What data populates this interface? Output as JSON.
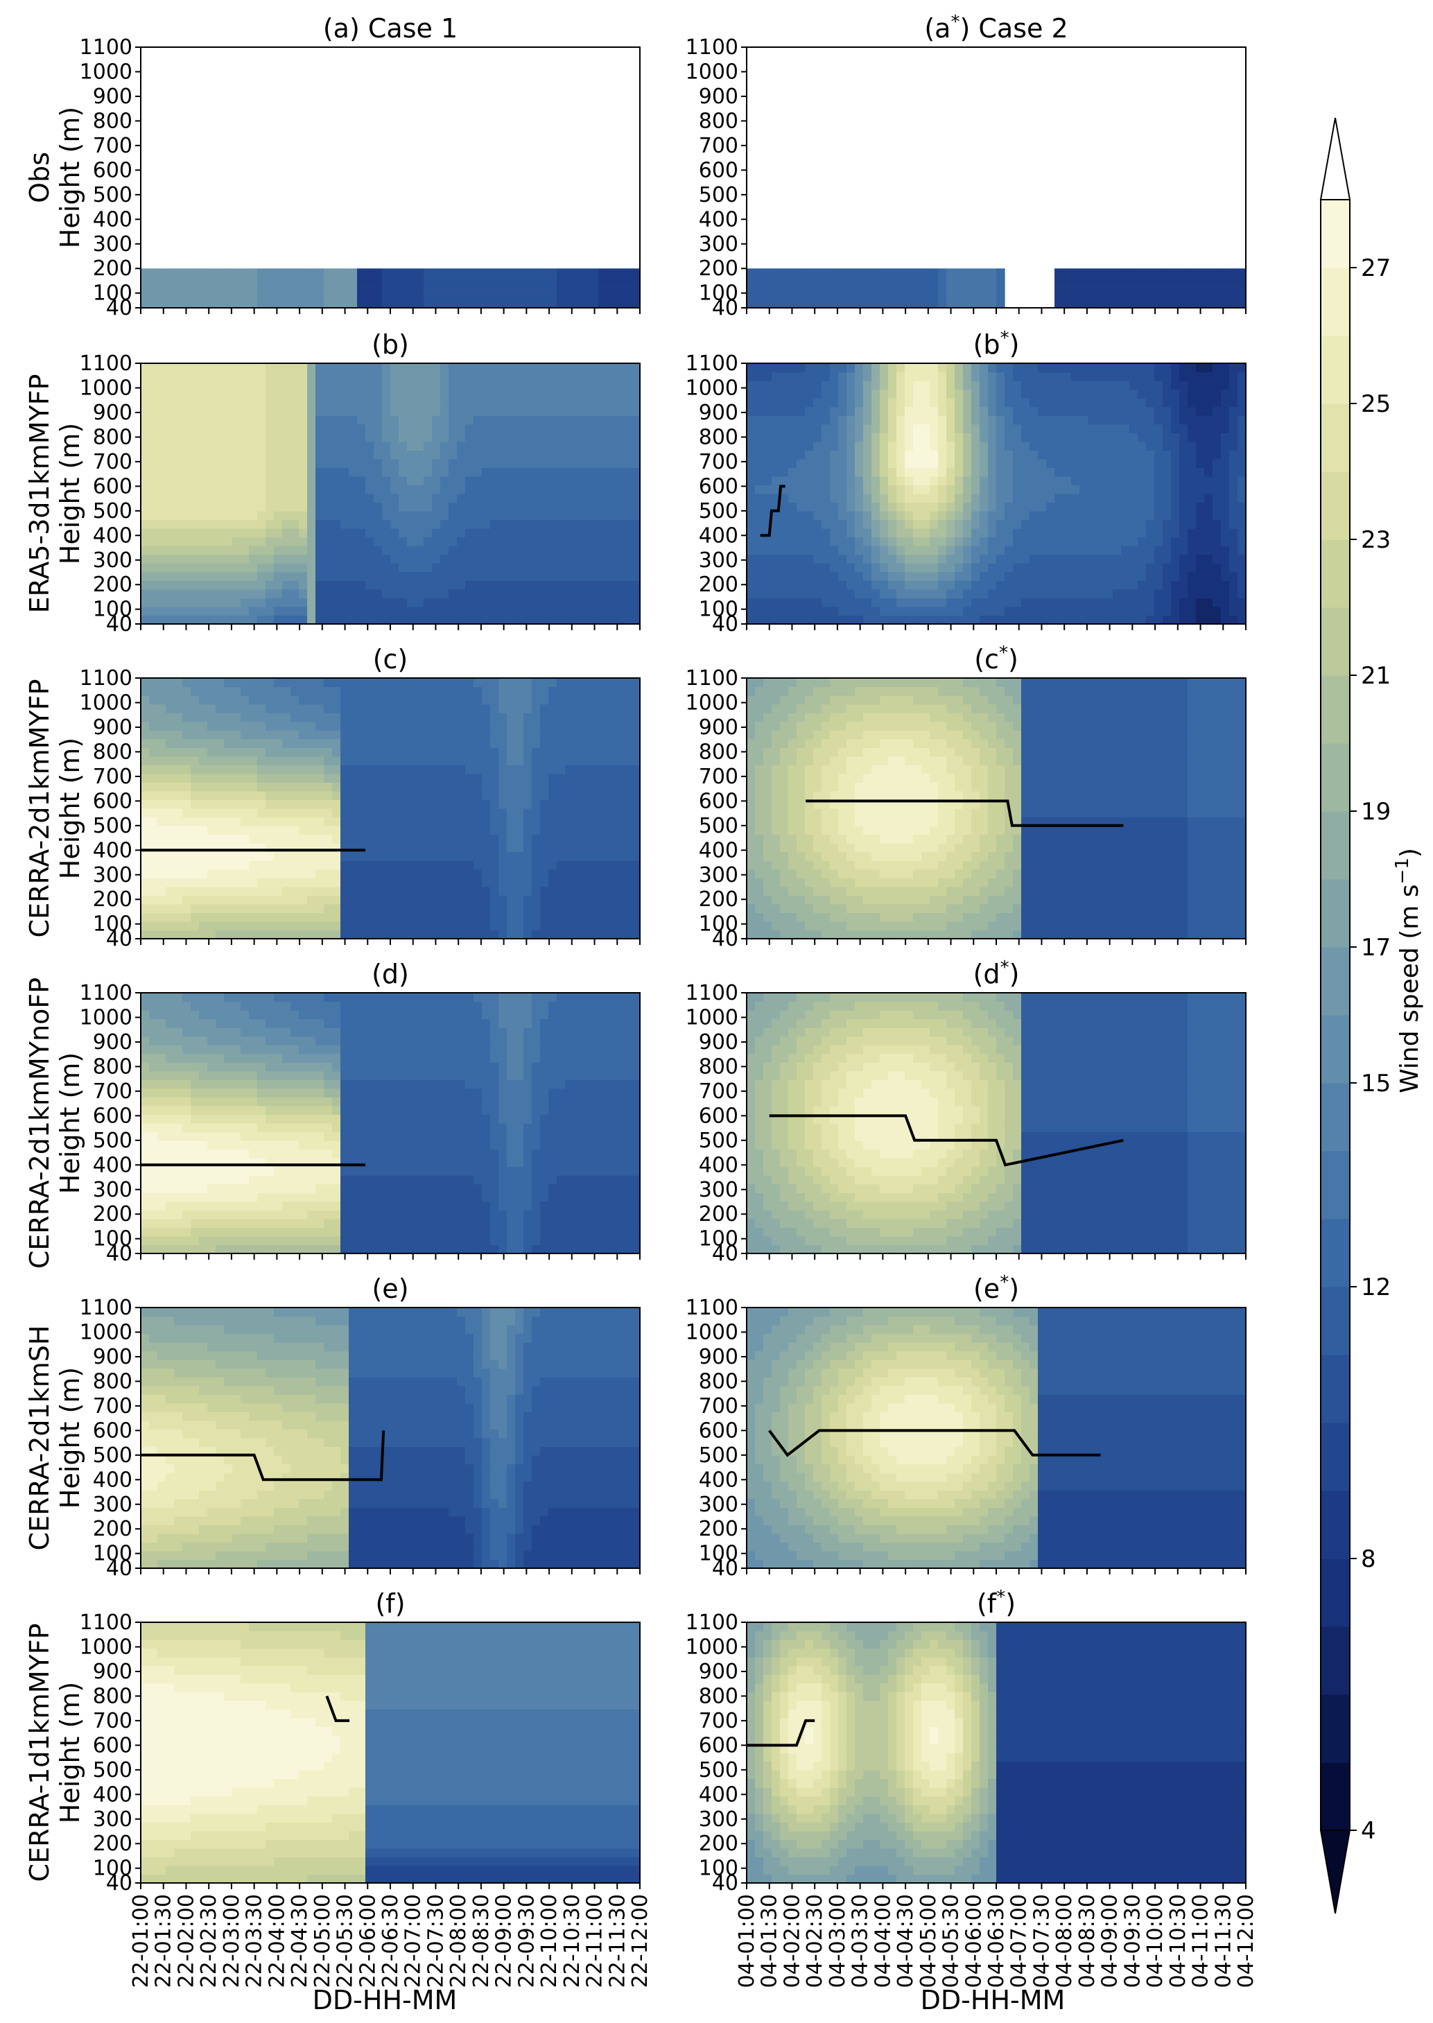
{
  "chart_data": {
    "type": "heatmap",
    "description_units": "Wind speed (m s^-1)",
    "x_label": "DD-HH-MM",
    "y_ticks": [
      40,
      100,
      200,
      300,
      400,
      500,
      600,
      700,
      800,
      900,
      1000,
      1100
    ],
    "ylim": [
      40,
      1100
    ],
    "colorbar": {
      "label": "Wind speed (m s$^{-1}$)",
      "label_plain": "Wind speed (m s",
      "label_sup": "−1",
      "label_close": ")",
      "ticks": [
        4,
        8,
        12,
        15,
        17,
        19,
        21,
        23,
        25,
        27
      ],
      "levels": [
        4,
        5,
        6,
        7,
        8,
        9,
        10,
        11,
        12,
        13,
        14,
        15,
        16,
        17,
        18,
        19,
        20,
        21,
        22,
        23,
        24,
        25,
        26,
        27,
        28
      ],
      "extend": "both",
      "colors": [
        "#070d3a",
        "#0c1a52",
        "#122668",
        "#17327a",
        "#1d3b85",
        "#23478f",
        "#295297",
        "#305e9f",
        "#3a6aa5",
        "#4776a8",
        "#5482aa",
        "#628dab",
        "#7198aa",
        "#80a3a8",
        "#8fada5",
        "#9eb7a1",
        "#adc09d",
        "#bcc99b",
        "#cad29c",
        "#d7dba2",
        "#e2e3ac",
        "#ebebba",
        "#f2f1c9",
        "#f8f7dc"
      ]
    },
    "column_titles": [
      "(a) Case 1",
      "(a*) Case 2"
    ],
    "x_ticks_case1": [
      "22-01:00",
      "22-01:30",
      "22-02:00",
      "22-02:30",
      "22-03:00",
      "22-03:30",
      "22-04:00",
      "22-04:30",
      "22-05:00",
      "22-05:30",
      "22-06:00",
      "22-06:30",
      "22-07:00",
      "22-07:30",
      "22-08:00",
      "22-08:30",
      "22-09:00",
      "22-09:30",
      "22-10:00",
      "22-10:30",
      "22-11:00",
      "22-11:30",
      "22-12:00"
    ],
    "x_ticks_case2": [
      "04-01:00",
      "04-01:30",
      "04-02:00",
      "04-02:30",
      "04-03:00",
      "04-03:30",
      "04-04:00",
      "04-04:30",
      "04-05:00",
      "04-05:30",
      "04-06:00",
      "04-06:30",
      "04-07:00",
      "04-07:30",
      "04-08:00",
      "04-08:30",
      "04-09:00",
      "04-09:30",
      "04-10:00",
      "04-10:30",
      "04-11:00",
      "04-11:30",
      "04-12:00"
    ],
    "rows": [
      {
        "ylabel_top": "Obs",
        "ylabel_bottom": "Height (m)",
        "case1_title": "(a) Case 1",
        "case2_title": "(a*) Case 2"
      },
      {
        "ylabel_top": "ERA5-3d1kmMYFP",
        "ylabel_bottom": "Height (m)",
        "case1_title": "(b)",
        "case2_title": "(b*)",
        "jet_case2": [
          [
            1.3,
            400
          ],
          [
            1.5,
            400
          ],
          [
            1.55,
            500
          ],
          [
            1.7,
            500
          ],
          [
            1.75,
            600
          ],
          [
            1.85,
            600
          ]
        ]
      },
      {
        "ylabel_top": "CERRA-2d1kmMYFP",
        "ylabel_bottom": "Height (m)",
        "case1_title": "(c)",
        "case2_title": "(c*)",
        "jet_case1": [
          [
            1.0,
            400
          ],
          [
            5.95,
            400
          ]
        ],
        "jet_case2": [
          [
            2.3,
            600
          ],
          [
            6.75,
            600
          ],
          [
            6.85,
            500
          ],
          [
            9.3,
            500
          ]
        ]
      },
      {
        "ylabel_top": "CERRA-2d1kmMYnoFP",
        "ylabel_bottom": "Height (m)",
        "case1_title": "(d)",
        "case2_title": "(d*)",
        "jet_case1": [
          [
            1.0,
            400
          ],
          [
            5.95,
            400
          ]
        ],
        "jet_case2": [
          [
            1.5,
            600
          ],
          [
            4.5,
            600
          ],
          [
            4.7,
            500
          ],
          [
            6.5,
            500
          ],
          [
            6.7,
            400
          ],
          [
            9.3,
            500
          ]
        ]
      },
      {
        "ylabel_top": "CERRA-2d1kmSH",
        "ylabel_bottom": "Height (m)",
        "case1_title": "(e)",
        "case2_title": "(e*)",
        "jet_case1": [
          [
            1.0,
            500
          ],
          [
            3.5,
            500
          ],
          [
            3.7,
            400
          ],
          [
            6.3,
            400
          ],
          [
            6.35,
            600
          ]
        ],
        "jet_case2": [
          [
            1.5,
            600
          ],
          [
            1.9,
            500
          ],
          [
            2.6,
            600
          ],
          [
            6.9,
            600
          ],
          [
            7.3,
            500
          ],
          [
            8.8,
            500
          ]
        ]
      },
      {
        "ylabel_top": "CERRA-1d1kmMYFP",
        "ylabel_bottom": "Height (m)",
        "case1_title": "(f)",
        "case2_title": "(f*)",
        "jet_case1": [
          [
            5.1,
            800
          ],
          [
            5.3,
            700
          ],
          [
            5.6,
            700
          ]
        ],
        "jet_case2": [
          [
            1.0,
            600
          ],
          [
            2.1,
            600
          ],
          [
            2.3,
            700
          ],
          [
            2.5,
            700
          ]
        ]
      }
    ]
  }
}
